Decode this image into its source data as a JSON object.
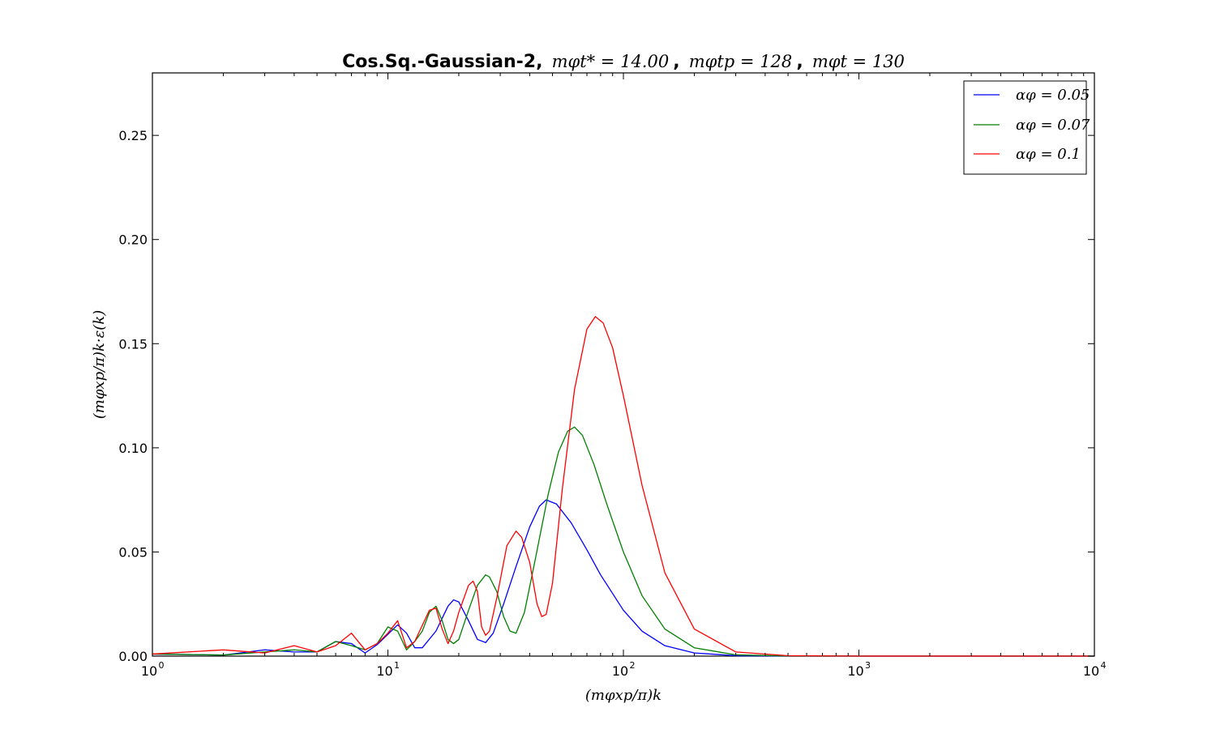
{
  "chart_data": {
    "type": "line",
    "title": {
      "bold_text": "Cos.Sq.-Gaussian-2,",
      "math_parts": [
        "mφt* = 14.00",
        "mφtp = 128",
        "mφt = 130"
      ],
      "separator": ","
    },
    "xlabel": "(mφxp/π)k",
    "ylabel": "(mφxp/π)k·ε(k)",
    "xscale": "log",
    "xlim": [
      1,
      10000
    ],
    "ylim": [
      0,
      0.28
    ],
    "x_ticks": [
      {
        "base": "10",
        "exp": "0",
        "value": 1
      },
      {
        "base": "10",
        "exp": "1",
        "value": 10
      },
      {
        "base": "10",
        "exp": "2",
        "value": 100
      },
      {
        "base": "10",
        "exp": "3",
        "value": 1000
      },
      {
        "base": "10",
        "exp": "4",
        "value": 10000
      }
    ],
    "y_ticks": [
      {
        "label": "0.00",
        "value": 0.0
      },
      {
        "label": "0.05",
        "value": 0.05
      },
      {
        "label": "0.10",
        "value": 0.1
      },
      {
        "label": "0.15",
        "value": 0.15
      },
      {
        "label": "0.20",
        "value": 0.2
      },
      {
        "label": "0.25",
        "value": 0.25
      }
    ],
    "grid": false,
    "legend_position": "top-right",
    "series": [
      {
        "name": "αφ = 0.05",
        "color": "#0000ff",
        "points": [
          [
            1,
            0.001
          ],
          [
            2,
            0.0005
          ],
          [
            3,
            0.003
          ],
          [
            4,
            0.002
          ],
          [
            5,
            0.002
          ],
          [
            6,
            0.007
          ],
          [
            7,
            0.006
          ],
          [
            8,
            0.0015
          ],
          [
            9,
            0.0055
          ],
          [
            11,
            0.015
          ],
          [
            12,
            0.011
          ],
          [
            13,
            0.004
          ],
          [
            14,
            0.004
          ],
          [
            16,
            0.012
          ],
          [
            18,
            0.024
          ],
          [
            19,
            0.027
          ],
          [
            20,
            0.026
          ],
          [
            22,
            0.017
          ],
          [
            24,
            0.008
          ],
          [
            26,
            0.0065
          ],
          [
            28,
            0.011
          ],
          [
            31,
            0.025
          ],
          [
            35,
            0.043
          ],
          [
            40,
            0.062
          ],
          [
            44,
            0.072
          ],
          [
            47,
            0.075
          ],
          [
            52,
            0.073
          ],
          [
            60,
            0.064
          ],
          [
            70,
            0.051
          ],
          [
            80,
            0.039
          ],
          [
            100,
            0.022
          ],
          [
            120,
            0.012
          ],
          [
            150,
            0.005
          ],
          [
            200,
            0.0015
          ],
          [
            300,
            0.0002
          ],
          [
            500,
            2e-05
          ],
          [
            1000,
            0
          ],
          [
            10000,
            0
          ]
        ]
      },
      {
        "name": "αφ = 0.07",
        "color": "#007f00",
        "points": [
          [
            1,
            0.001
          ],
          [
            2,
            0.0005
          ],
          [
            3,
            0.002
          ],
          [
            4,
            0.003
          ],
          [
            5,
            0.002
          ],
          [
            6,
            0.007
          ],
          [
            7,
            0.005
          ],
          [
            8,
            0.003
          ],
          [
            9,
            0.006
          ],
          [
            10,
            0.014
          ],
          [
            11,
            0.012
          ],
          [
            12,
            0.003
          ],
          [
            13,
            0.007
          ],
          [
            14,
            0.012
          ],
          [
            15,
            0.021
          ],
          [
            16,
            0.024
          ],
          [
            17,
            0.017
          ],
          [
            18,
            0.008
          ],
          [
            19,
            0.006
          ],
          [
            20,
            0.008
          ],
          [
            22,
            0.022
          ],
          [
            24,
            0.034
          ],
          [
            26,
            0.039
          ],
          [
            27,
            0.038
          ],
          [
            29,
            0.031
          ],
          [
            31,
            0.019
          ],
          [
            33,
            0.012
          ],
          [
            35,
            0.011
          ],
          [
            38,
            0.021
          ],
          [
            42,
            0.045
          ],
          [
            48,
            0.078
          ],
          [
            53,
            0.098
          ],
          [
            58,
            0.108
          ],
          [
            62,
            0.11
          ],
          [
            67,
            0.106
          ],
          [
            75,
            0.092
          ],
          [
            85,
            0.073
          ],
          [
            100,
            0.05
          ],
          [
            120,
            0.029
          ],
          [
            150,
            0.013
          ],
          [
            200,
            0.004
          ],
          [
            300,
            0.0006
          ],
          [
            500,
            5e-05
          ],
          [
            1000,
            0
          ],
          [
            10000,
            0
          ]
        ]
      },
      {
        "name": "αφ = 0.1",
        "color": "#ff0000",
        "points": [
          [
            1,
            0.001
          ],
          [
            2,
            0.003
          ],
          [
            3,
            0.0015
          ],
          [
            4,
            0.005
          ],
          [
            5,
            0.002
          ],
          [
            6,
            0.005
          ],
          [
            7,
            0.011
          ],
          [
            8,
            0.003
          ],
          [
            9,
            0.006
          ],
          [
            10,
            0.011
          ],
          [
            11,
            0.017
          ],
          [
            12,
            0.004
          ],
          [
            13,
            0.007
          ],
          [
            15,
            0.022
          ],
          [
            16,
            0.023
          ],
          [
            17,
            0.013
          ],
          [
            18,
            0.006
          ],
          [
            19,
            0.012
          ],
          [
            20,
            0.021
          ],
          [
            22,
            0.034
          ],
          [
            23,
            0.036
          ],
          [
            24,
            0.031
          ],
          [
            25,
            0.014
          ],
          [
            26,
            0.01
          ],
          [
            27,
            0.012
          ],
          [
            29,
            0.028
          ],
          [
            32,
            0.053
          ],
          [
            35,
            0.06
          ],
          [
            37,
            0.057
          ],
          [
            40,
            0.045
          ],
          [
            43,
            0.025
          ],
          [
            45,
            0.019
          ],
          [
            47,
            0.02
          ],
          [
            50,
            0.035
          ],
          [
            55,
            0.08
          ],
          [
            62,
            0.128
          ],
          [
            70,
            0.157
          ],
          [
            76,
            0.163
          ],
          [
            82,
            0.16
          ],
          [
            90,
            0.148
          ],
          [
            100,
            0.125
          ],
          [
            120,
            0.082
          ],
          [
            150,
            0.04
          ],
          [
            200,
            0.013
          ],
          [
            300,
            0.002
          ],
          [
            500,
            0.0002
          ],
          [
            1000,
            0
          ],
          [
            10000,
            0
          ]
        ]
      }
    ]
  }
}
